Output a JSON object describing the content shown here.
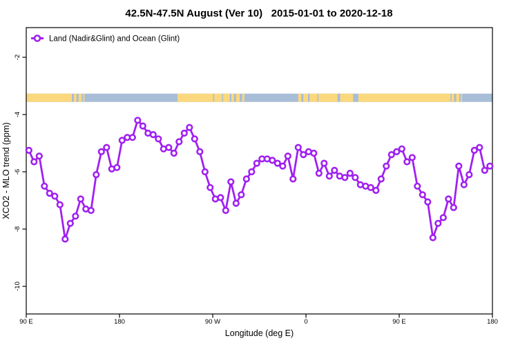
{
  "title": "42.5N-47.5N August (Ver 10)   2015-01-01 to 2020-12-18",
  "legend": {
    "label": "Land (Nadir&Glint) and Ocean (Glint)"
  },
  "colors": {
    "line": "#A020F0",
    "marker_fill": "#FFFFFF",
    "land": "#FBD87E",
    "ocean": "#A7BDD8",
    "axis": "#000000"
  },
  "chart_data": {
    "type": "line",
    "title": "42.5N-47.5N August (Ver 10)   2015-01-01 to 2020-12-18",
    "xlabel": "Longitude (deg E)",
    "ylabel": "XCO2 - MLO trend (ppm)",
    "xlim": [
      90,
      540
    ],
    "ylim": [
      -11,
      -1
    ],
    "grid": false,
    "legend_position": "top-left-inside",
    "x_ticks": [
      {
        "pos": 90,
        "label": "90 E"
      },
      {
        "pos": 180,
        "label": "180"
      },
      {
        "pos": 270,
        "label": "90 W"
      },
      {
        "pos": 360,
        "label": "0"
      },
      {
        "pos": 450,
        "label": "90 E"
      },
      {
        "pos": 540,
        "label": "180"
      }
    ],
    "y_ticks": [
      {
        "pos": -2,
        "label": "-2"
      },
      {
        "pos": -4,
        "label": "-4"
      },
      {
        "pos": -6,
        "label": "-6"
      },
      {
        "pos": -8,
        "label": "-8"
      },
      {
        "pos": -10,
        "label": "-10"
      }
    ],
    "series": [
      {
        "name": "Land (Nadir&Glint) and Ocean (Glint)",
        "marker": "open-circle",
        "lon_start": 92.5,
        "lon_step": 5,
        "values": [
          -5.25,
          -5.65,
          -5.45,
          -6.5,
          -6.75,
          -6.85,
          -7.15,
          -8.35,
          -7.8,
          -7.55,
          -6.95,
          -7.3,
          -7.35,
          -6.1,
          -5.3,
          -5.15,
          -5.9,
          -5.85,
          -4.9,
          -4.8,
          -4.8,
          -4.2,
          -4.4,
          -4.65,
          -4.7,
          -4.85,
          -5.2,
          -5.15,
          -5.35,
          -4.95,
          -4.65,
          -4.45,
          -4.85,
          -5.3,
          -6.0,
          -6.55,
          -6.95,
          -6.9,
          -7.35,
          -6.35,
          -7.1,
          -6.8,
          -6.25,
          -6.0,
          -5.7,
          -5.55,
          -5.55,
          -5.6,
          -5.7,
          -5.8,
          -5.45,
          -6.25,
          -5.15,
          -5.4,
          -5.3,
          -5.35,
          -6.05,
          -5.7,
          -6.15,
          -5.95,
          -6.15,
          -6.2,
          -6.05,
          -6.2,
          -6.45,
          -6.5,
          -6.55,
          -6.65,
          -6.25,
          -5.8,
          -5.4,
          -5.3,
          -5.2,
          -5.65,
          -5.5,
          -6.5,
          -6.8,
          -7.05,
          -8.3,
          -7.8,
          -7.6,
          -6.95,
          -7.25,
          -5.8,
          -6.45,
          -6.1,
          -5.25,
          -5.15,
          -5.95,
          -5.8
        ]
      }
    ],
    "map_band": {
      "description": "land/ocean strip across 42.5N-47.5N",
      "value_top": -3.27,
      "value_bottom": -3.56,
      "base": "ocean",
      "land_segments": [
        [
          90,
          134
        ],
        [
          136,
          138.5
        ],
        [
          140.5,
          143.5
        ],
        [
          145,
          146.2
        ],
        [
          236,
          270.5
        ],
        [
          271.5,
          279
        ],
        [
          280,
          286.5
        ],
        [
          288,
          290.5
        ],
        [
          292.5,
          296
        ],
        [
          298.5,
          300.5
        ],
        [
          352.5,
          355.5
        ],
        [
          357.5,
          362
        ],
        [
          363.5,
          371
        ],
        [
          372,
          390.5
        ],
        [
          393,
          405.5
        ],
        [
          410.5,
          499.5
        ],
        [
          500.5,
          503
        ],
        [
          505,
          508
        ],
        [
          509.5,
          510.5
        ]
      ]
    }
  }
}
